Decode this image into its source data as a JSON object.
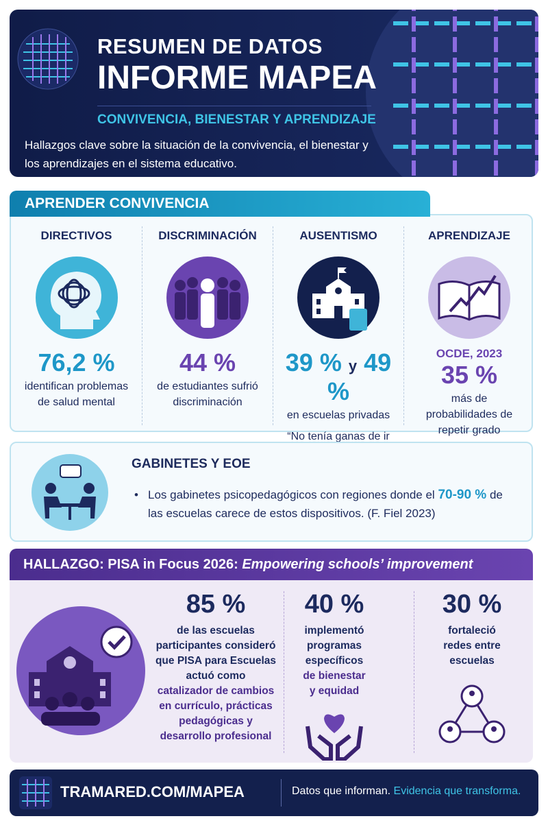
{
  "header": {
    "title_line1": "RESUMEN DE DATOS",
    "title_line2": "INFORME MAPEA",
    "subtitle": "CONVIVENCIA, BIENESTAR Y APRENDIZAJE",
    "description": "Hallazgos clave sobre la situación de la convivencia, el bienestar y los aprendizajes en el sistema educativo."
  },
  "section1": {
    "title": "APRENDER CONVIVENCIA",
    "cards": [
      {
        "heading": "DIRECTIVOS",
        "stat": "76,2 %",
        "text": "identifican problemas de salud mental"
      },
      {
        "heading": "DISCRIMINACIÓN",
        "stat": "44 %",
        "text": "de estudiantes sufrió discriminación"
      },
      {
        "heading": "AUSENTISMO",
        "stat_a": "39 %",
        "connector": "y",
        "stat_b": "49 %",
        "text": "en escuelas privadas",
        "quote": "“No tenía ganas de ir a la escuela”"
      },
      {
        "heading": "APRENDIZAJE",
        "source": "OCDE, 2023",
        "stat": "35 %",
        "text": "más de probabilidades de repetir grado"
      }
    ]
  },
  "gabinetes": {
    "title": "GABINETES Y EOE",
    "bullet_before": "Los gabinetes psicopedagógicos con regiones donde el",
    "highlight": "70-90 %",
    "bullet_after": "de las escuelas carece de estos dispositivos. (F. Fiel 2023)"
  },
  "hallazgo": {
    "title_plain": "HALLAZGO: PISA in Focus 2026:",
    "title_italic": "Empowering schools’ improvement",
    "stats": [
      {
        "value": "85 %",
        "text": "de las escuelas participantes consideró que PISA para Escuelas actuó como",
        "emphasis": "catalizador de cambios en currículo, prácticas pedagógicas y desarrollo profesional"
      },
      {
        "value": "40 %",
        "text": "implementó programas específicos",
        "emphasis": "de bienestar y equidad"
      },
      {
        "value": "30 %",
        "text": "fortaleció redes entre escuelas"
      }
    ]
  },
  "footer": {
    "url": "TRAMARED.COM/MAPEA",
    "tagline_plain": "Datos que informan.",
    "tagline_highlight": "Evidencia que transforma."
  }
}
